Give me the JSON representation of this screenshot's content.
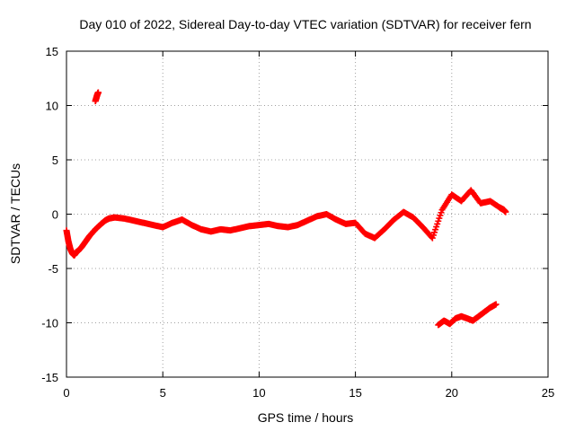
{
  "chart_data": {
    "type": "scatter",
    "title": "Day 010 of 2022, Sidereal Day-to-day VTEC variation (SDTVAR) for receiver fern",
    "xlabel": "GPS time / hours",
    "ylabel": "SDTVAR / TECUs",
    "xlim": [
      0,
      25
    ],
    "ylim": [
      -15,
      15
    ],
    "xticks": [
      0,
      5,
      10,
      15,
      20,
      25
    ],
    "xtick_labels": [
      "0",
      "5",
      "10",
      "15",
      "20",
      "25"
    ],
    "yticks": [
      -15,
      -10,
      -5,
      0,
      5,
      10,
      15
    ],
    "ytick_labels": [
      "-15",
      "-10",
      "-5",
      "0",
      "5",
      "10",
      "15"
    ],
    "grid": true,
    "marker": "plus",
    "series_color": "#ff0000",
    "series": [
      {
        "name": "main",
        "x": [
          0.0,
          0.1,
          0.2,
          0.3,
          0.4,
          0.5,
          0.6,
          0.8,
          1.0,
          1.2,
          1.5,
          1.8,
          2.0,
          2.2,
          2.5,
          3.0,
          3.5,
          4.0,
          4.5,
          5.0,
          5.5,
          6.0,
          6.5,
          7.0,
          7.5,
          8.0,
          8.5,
          9.0,
          9.5,
          10.0,
          10.5,
          11.0,
          11.5,
          12.0,
          12.5,
          13.0,
          13.5,
          14.0,
          14.5,
          15.0,
          15.5,
          16.0,
          16.5,
          17.0,
          17.5,
          18.0,
          18.5,
          19.0,
          19.5,
          20.0,
          20.5,
          21.0,
          21.5,
          22.0,
          22.5
        ],
        "y": [
          -1.5,
          -2.5,
          -3.2,
          -3.6,
          -3.8,
          -3.5,
          -3.4,
          -3.0,
          -2.5,
          -2.0,
          -1.4,
          -0.9,
          -0.6,
          -0.4,
          -0.3,
          -0.4,
          -0.6,
          -0.8,
          -1.0,
          -1.2,
          -0.8,
          -0.5,
          -1.0,
          -1.4,
          -1.6,
          -1.4,
          -1.5,
          -1.3,
          -1.1,
          -1.0,
          -0.9,
          -1.1,
          -1.2,
          -1.0,
          -0.6,
          -0.2,
          0.0,
          -0.5,
          -0.9,
          -0.8,
          -1.8,
          -2.2,
          -1.4,
          -0.5,
          0.2,
          -0.3,
          -1.2,
          -2.2,
          0.4,
          1.8,
          1.2,
          2.2,
          1.0,
          1.2,
          0.6
        ]
      },
      {
        "name": "upper-left",
        "x": [
          1.5,
          1.55,
          1.6,
          1.65
        ],
        "y": [
          10.4,
          10.7,
          11.0,
          11.2
        ]
      },
      {
        "name": "lower-right",
        "x": [
          19.3,
          19.6,
          19.9,
          20.2,
          20.5,
          20.8,
          21.1,
          21.4,
          21.7,
          22.0,
          22.3
        ],
        "y": [
          -10.2,
          -9.8,
          -10.1,
          -9.6,
          -9.4,
          -9.6,
          -9.8,
          -9.4,
          -9.0,
          -8.6,
          -8.3
        ]
      },
      {
        "name": "end",
        "x": [
          22.5,
          22.6,
          22.7,
          22.8
        ],
        "y": [
          0.6,
          0.5,
          0.4,
          0.2
        ]
      }
    ]
  }
}
